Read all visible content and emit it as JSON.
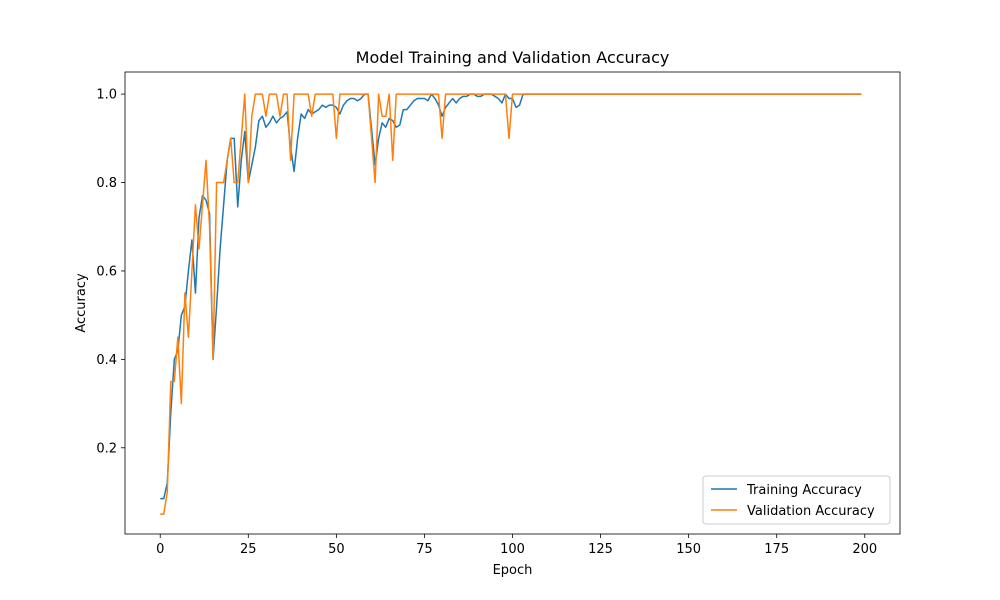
{
  "chart_data": {
    "type": "line",
    "title": "Model Training and Validation Accuracy",
    "xlabel": "Epoch",
    "ylabel": "Accuracy",
    "xlim": [
      -10,
      210
    ],
    "ylim": [
      0.005,
      1.05
    ],
    "xticks": [
      0,
      25,
      50,
      75,
      100,
      125,
      150,
      175,
      200
    ],
    "yticks": [
      0.2,
      0.4,
      0.6,
      0.8,
      1.0
    ],
    "ytick_labels": [
      "0.2",
      "0.4",
      "0.6",
      "0.8",
      "1.0"
    ],
    "grid": false,
    "legend_position": "lower-right",
    "series": [
      {
        "name": "Training Accuracy",
        "color": "#1f77b4",
        "points": [
          [
            0,
            0.085
          ],
          [
            1,
            0.085
          ],
          [
            2,
            0.12
          ],
          [
            3,
            0.28
          ],
          [
            4,
            0.4
          ],
          [
            5,
            0.42
          ],
          [
            6,
            0.5
          ],
          [
            7,
            0.52
          ],
          [
            8,
            0.6
          ],
          [
            9,
            0.67
          ],
          [
            10,
            0.55
          ],
          [
            11,
            0.72
          ],
          [
            12,
            0.77
          ],
          [
            13,
            0.76
          ],
          [
            14,
            0.73
          ],
          [
            15,
            0.4
          ],
          [
            16,
            0.52
          ],
          [
            17,
            0.65
          ],
          [
            18,
            0.75
          ],
          [
            19,
            0.85
          ],
          [
            20,
            0.9
          ],
          [
            21,
            0.9
          ],
          [
            22,
            0.745
          ],
          [
            23,
            0.85
          ],
          [
            24,
            0.915
          ],
          [
            25,
            0.8
          ],
          [
            26,
            0.84
          ],
          [
            27,
            0.88
          ],
          [
            28,
            0.94
          ],
          [
            29,
            0.95
          ],
          [
            30,
            0.925
          ],
          [
            31,
            0.935
          ],
          [
            32,
            0.95
          ],
          [
            33,
            0.935
          ],
          [
            34,
            0.945
          ],
          [
            35,
            0.95
          ],
          [
            36,
            0.96
          ],
          [
            37,
            0.88
          ],
          [
            38,
            0.825
          ],
          [
            39,
            0.9
          ],
          [
            40,
            0.955
          ],
          [
            41,
            0.945
          ],
          [
            42,
            0.965
          ],
          [
            43,
            0.955
          ],
          [
            44,
            0.96
          ],
          [
            45,
            0.965
          ],
          [
            46,
            0.975
          ],
          [
            47,
            0.97
          ],
          [
            48,
            0.975
          ],
          [
            49,
            0.975
          ],
          [
            50,
            0.97
          ],
          [
            51,
            0.955
          ],
          [
            52,
            0.975
          ],
          [
            53,
            0.985
          ],
          [
            54,
            0.99
          ],
          [
            55,
            0.99
          ],
          [
            56,
            0.985
          ],
          [
            57,
            0.99
          ],
          [
            58,
            1.0
          ],
          [
            59,
            1.0
          ],
          [
            60,
            0.92
          ],
          [
            61,
            0.84
          ],
          [
            62,
            0.9
          ],
          [
            63,
            0.935
          ],
          [
            64,
            0.925
          ],
          [
            65,
            0.945
          ],
          [
            66,
            0.94
          ],
          [
            67,
            0.925
          ],
          [
            68,
            0.93
          ],
          [
            69,
            0.965
          ],
          [
            70,
            0.965
          ],
          [
            71,
            0.975
          ],
          [
            72,
            0.985
          ],
          [
            73,
            0.99
          ],
          [
            74,
            0.99
          ],
          [
            75,
            0.99
          ],
          [
            76,
            0.985
          ],
          [
            77,
            1.0
          ],
          [
            78,
            0.99
          ],
          [
            79,
            0.975
          ],
          [
            80,
            0.95
          ],
          [
            81,
            0.97
          ],
          [
            82,
            0.98
          ],
          [
            83,
            0.99
          ],
          [
            84,
            0.98
          ],
          [
            85,
            0.99
          ],
          [
            86,
            0.995
          ],
          [
            87,
            0.995
          ],
          [
            88,
            1.0
          ],
          [
            89,
            1.0
          ],
          [
            90,
            0.995
          ],
          [
            91,
            0.995
          ],
          [
            92,
            1.0
          ],
          [
            93,
            1.0
          ],
          [
            94,
            1.0
          ],
          [
            95,
            0.995
          ],
          [
            96,
            0.99
          ],
          [
            97,
            0.98
          ],
          [
            98,
            1.0
          ],
          [
            99,
            0.99
          ],
          [
            100,
            0.99
          ],
          [
            101,
            0.97
          ],
          [
            102,
            0.975
          ],
          [
            103,
            1.0
          ],
          [
            104,
            1.0
          ],
          [
            110,
            1.0
          ],
          [
            150,
            1.0
          ],
          [
            199,
            1.0
          ]
        ]
      },
      {
        "name": "Validation Accuracy",
        "color": "#ff7f0e",
        "points": [
          [
            0,
            0.05
          ],
          [
            1,
            0.05
          ],
          [
            2,
            0.1
          ],
          [
            3,
            0.35
          ],
          [
            4,
            0.35
          ],
          [
            5,
            0.45
          ],
          [
            6,
            0.3
          ],
          [
            7,
            0.55
          ],
          [
            8,
            0.45
          ],
          [
            9,
            0.6
          ],
          [
            10,
            0.75
          ],
          [
            11,
            0.65
          ],
          [
            12,
            0.75
          ],
          [
            13,
            0.85
          ],
          [
            14,
            0.7
          ],
          [
            15,
            0.4
          ],
          [
            16,
            0.8
          ],
          [
            17,
            0.8
          ],
          [
            18,
            0.8
          ],
          [
            19,
            0.85
          ],
          [
            20,
            0.9
          ],
          [
            21,
            0.8
          ],
          [
            22,
            0.8
          ],
          [
            23,
            0.9
          ],
          [
            24,
            1.0
          ],
          [
            25,
            0.8
          ],
          [
            26,
            0.95
          ],
          [
            27,
            1.0
          ],
          [
            28,
            1.0
          ],
          [
            29,
            1.0
          ],
          [
            30,
            0.95
          ],
          [
            31,
            1.0
          ],
          [
            32,
            1.0
          ],
          [
            33,
            1.0
          ],
          [
            34,
            0.95
          ],
          [
            35,
            1.0
          ],
          [
            36,
            1.0
          ],
          [
            37,
            0.85
          ],
          [
            38,
            1.0
          ],
          [
            39,
            1.0
          ],
          [
            40,
            1.0
          ],
          [
            41,
            1.0
          ],
          [
            42,
            1.0
          ],
          [
            43,
            0.95
          ],
          [
            44,
            1.0
          ],
          [
            45,
            1.0
          ],
          [
            46,
            1.0
          ],
          [
            47,
            1.0
          ],
          [
            48,
            1.0
          ],
          [
            49,
            1.0
          ],
          [
            50,
            0.9
          ],
          [
            51,
            1.0
          ],
          [
            52,
            1.0
          ],
          [
            53,
            1.0
          ],
          [
            54,
            1.0
          ],
          [
            55,
            1.0
          ],
          [
            56,
            1.0
          ],
          [
            57,
            1.0
          ],
          [
            58,
            1.0
          ],
          [
            59,
            1.0
          ],
          [
            60,
            0.9
          ],
          [
            61,
            0.8
          ],
          [
            62,
            1.0
          ],
          [
            63,
            0.95
          ],
          [
            64,
            0.95
          ],
          [
            65,
            1.0
          ],
          [
            66,
            0.85
          ],
          [
            67,
            1.0
          ],
          [
            68,
            1.0
          ],
          [
            69,
            1.0
          ],
          [
            70,
            1.0
          ],
          [
            71,
            1.0
          ],
          [
            72,
            1.0
          ],
          [
            73,
            1.0
          ],
          [
            74,
            1.0
          ],
          [
            75,
            1.0
          ],
          [
            76,
            1.0
          ],
          [
            77,
            1.0
          ],
          [
            78,
            1.0
          ],
          [
            79,
            1.0
          ],
          [
            80,
            0.9
          ],
          [
            81,
            1.0
          ],
          [
            82,
            1.0
          ],
          [
            90,
            1.0
          ],
          [
            97,
            1.0
          ],
          [
            98,
            1.0
          ],
          [
            99,
            0.9
          ],
          [
            100,
            1.0
          ],
          [
            101,
            1.0
          ],
          [
            110,
            1.0
          ],
          [
            150,
            1.0
          ],
          [
            199,
            1.0
          ]
        ]
      }
    ]
  }
}
